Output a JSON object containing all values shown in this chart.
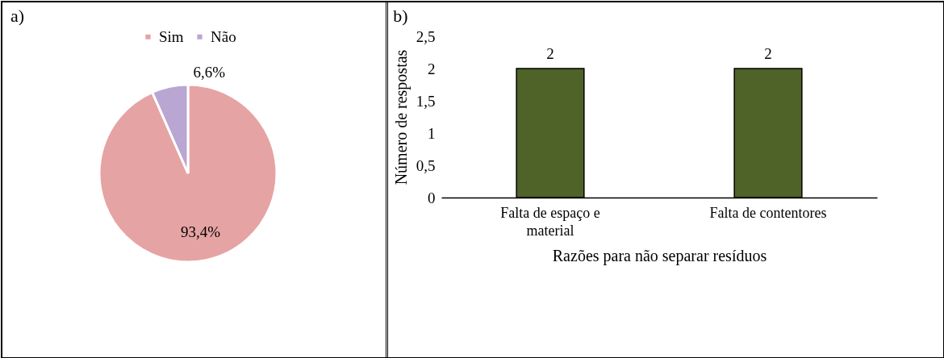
{
  "chart_data": [
    {
      "type": "pie",
      "title": "a)",
      "categories": [
        "Sim",
        "Não"
      ],
      "values": [
        93.4,
        6.6
      ],
      "colors": [
        "#e6a3a3",
        "#b9a6d3"
      ],
      "value_labels": [
        "93,4%",
        "6,6%"
      ],
      "legend": "top"
    },
    {
      "type": "bar",
      "title": "b)",
      "categories": [
        "Falta de espaço e material",
        "Falta de contentores"
      ],
      "values": [
        2,
        2
      ],
      "color": "#4f6228",
      "ylim": [
        0,
        2.5
      ],
      "yticks": [
        0,
        {
          "value": 0.5,
          "label": "0,5"
        },
        1,
        {
          "value": 1.5,
          "label": "1,5"
        },
        2,
        {
          "value": 2.5,
          "label": "2,5"
        }
      ],
      "ylabel": "Número de respostas",
      "xlabel": "Razões para não separar resíduos",
      "data_labels": true,
      "grid": false
    }
  ]
}
